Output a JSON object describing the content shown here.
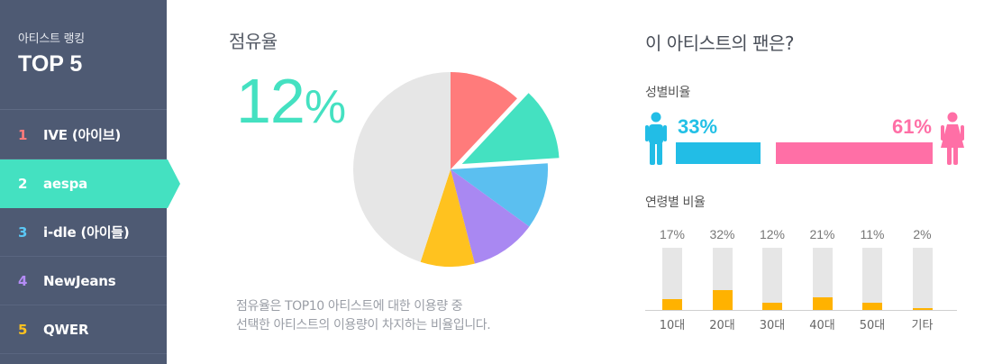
{
  "sidebar": {
    "subtitle": "아티스트 랭킹",
    "title": "TOP 5",
    "items": [
      {
        "rank": "1",
        "name": "IVE (아이브)",
        "rank_color": "#ff7b7b"
      },
      {
        "rank": "2",
        "name": "aespa",
        "rank_color": "#ffffff"
      },
      {
        "rank": "3",
        "name": "i-dle (아이들)",
        "rank_color": "#5bc8f5"
      },
      {
        "rank": "4",
        "name": "NewJeans",
        "rank_color": "#b48cf5"
      },
      {
        "rank": "5",
        "name": "QWER",
        "rank_color": "#ffc21f"
      }
    ],
    "active_index": 1
  },
  "share": {
    "title": "점유율",
    "value": "12",
    "unit": "%",
    "note_line1": "점유율은 TOP10 아티스트에 대한 이용량 중",
    "note_line2": "선택한 아티스트의 이용량이 차지하는 비율입니다."
  },
  "fans": {
    "title": "이 아티스트의 팬은?",
    "gender_title": "성별비율",
    "male_pct": "33%",
    "female_pct": "61%",
    "age_title": "연령별 비율"
  },
  "chart_data": [
    {
      "type": "pie",
      "title": "",
      "slices": [
        {
          "value": 12,
          "color": "#ff7b7b"
        },
        {
          "value": 12,
          "color": "#44e1c1",
          "exploded": true
        },
        {
          "value": 11,
          "color": "#5bbff0"
        },
        {
          "value": 11,
          "color": "#a988f2"
        },
        {
          "value": 9,
          "color": "#ffc21f"
        },
        {
          "value": 45,
          "color": "#e6e6e6"
        }
      ]
    },
    {
      "type": "bar",
      "title": "",
      "categories": [
        "10대",
        "20대",
        "30대",
        "40대",
        "50대",
        "기타"
      ],
      "values": [
        17,
        32,
        12,
        21,
        11,
        2
      ],
      "value_labels": [
        "17%",
        "32%",
        "12%",
        "21%",
        "11%",
        "2%"
      ],
      "ylim": [
        0,
        100
      ],
      "bar_color": "#ffb200",
      "track_color": "#e6e6e6"
    }
  ]
}
